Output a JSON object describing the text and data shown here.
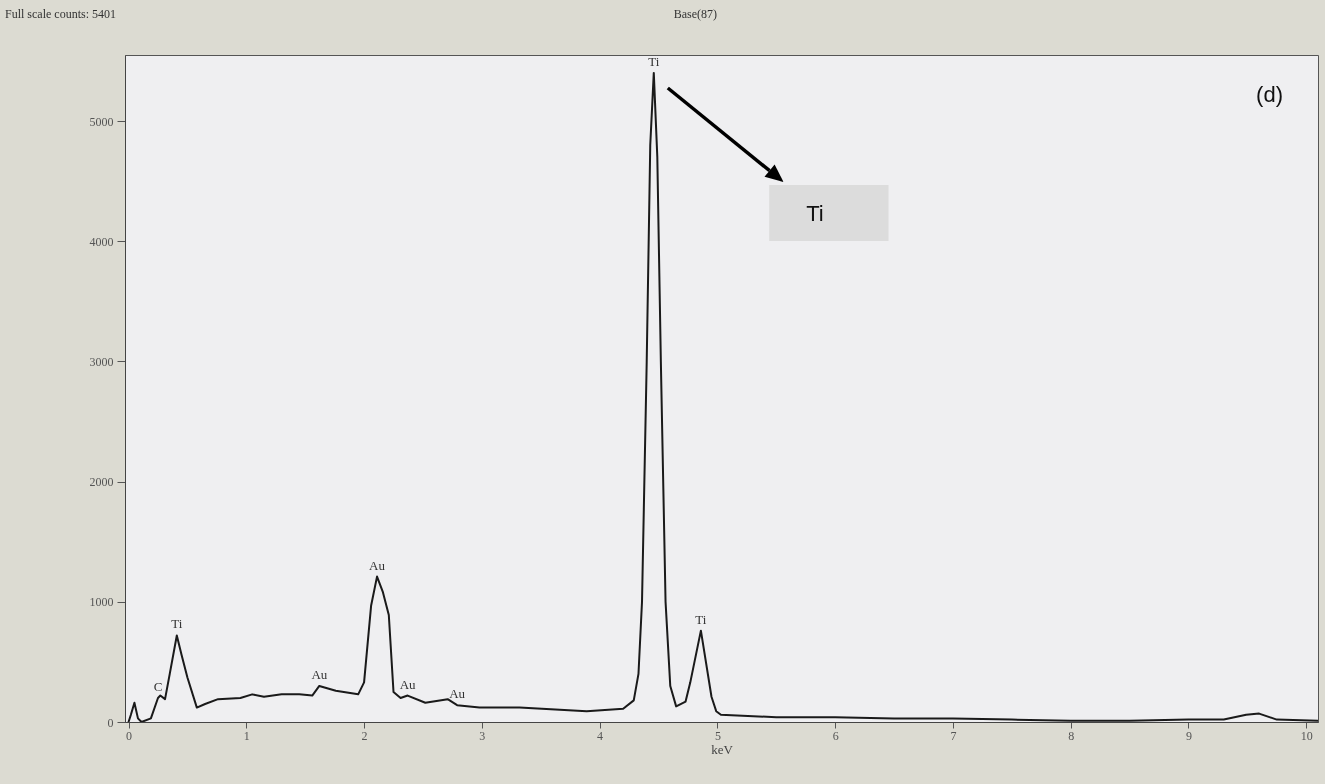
{
  "chart_data": {
    "type": "line",
    "xlabel": "keV",
    "xlim": [
      -0.03,
      10.1
    ],
    "xticks": [
      0,
      1,
      2,
      3,
      4,
      5,
      6,
      7,
      8,
      9,
      10
    ],
    "ylim": [
      0,
      5550
    ],
    "yticks": [
      0,
      1000,
      2000,
      3000,
      4000,
      5000
    ],
    "grid": false,
    "x": [
      0,
      0.02,
      0.05,
      0.08,
      0.11,
      0.19,
      0.25,
      0.27,
      0.31,
      0.35,
      0.41,
      0.45,
      0.5,
      0.58,
      0.65,
      0.76,
      0.95,
      1.05,
      1.15,
      1.3,
      1.45,
      1.56,
      1.62,
      1.76,
      1.95,
      2.0,
      2.06,
      2.11,
      2.16,
      2.21,
      2.25,
      2.31,
      2.37,
      2.52,
      2.71,
      2.79,
      2.98,
      3.32,
      3.7,
      3.89,
      4.2,
      4.29,
      4.33,
      4.36,
      4.4,
      4.43,
      4.46,
      4.49,
      4.52,
      4.56,
      4.6,
      4.65,
      4.73,
      4.77,
      4.86,
      4.95,
      4.99,
      5.03,
      5.5,
      6,
      6.5,
      7,
      7.5,
      8,
      8.5,
      9,
      9.3,
      9.49,
      9.6,
      9.75,
      10.1
    ],
    "series": [
      {
        "color": "#1a1a1a",
        "values": [
          0,
          60,
          160,
          30,
          0,
          30,
          200,
          220,
          190,
          400,
          720,
          560,
          370,
          120,
          150,
          190,
          200,
          230,
          210,
          230,
          230,
          220,
          300,
          260,
          230,
          330,
          970,
          1210,
          1080,
          890,
          250,
          200,
          220,
          160,
          190,
          140,
          120,
          120,
          100,
          90,
          110,
          180,
          400,
          1000,
          3000,
          4800,
          5401,
          4700,
          3000,
          1000,
          300,
          130,
          170,
          330,
          760,
          210,
          90,
          60,
          40,
          40,
          30,
          30,
          20,
          10,
          10,
          20,
          20,
          60,
          70,
          20,
          10
        ]
      }
    ],
    "annotations": [
      "Full scale counts: 5401",
      "Base(87)",
      "(d)",
      "Ti",
      {
        "text": "C",
        "x": 0.25,
        "y": 200
      },
      {
        "text": "Ti",
        "x": 0.41,
        "y": 720
      },
      {
        "text": "Au",
        "x": 1.62,
        "y": 300
      },
      {
        "text": "Au",
        "x": 2.11,
        "y": 1210
      },
      {
        "text": "Au",
        "x": 2.37,
        "y": 220
      },
      {
        "text": "Au",
        "x": 2.79,
        "y": 140
      },
      {
        "text": "Ti",
        "x": 4.46,
        "y": 5401
      },
      {
        "text": "Ti",
        "x": 4.86,
        "y": 760
      }
    ]
  }
}
